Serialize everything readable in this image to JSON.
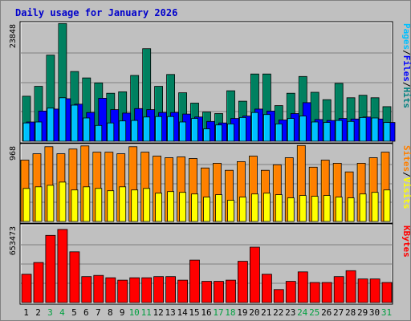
{
  "chart_data": {
    "type": "bar",
    "title": "Daily usage for January 2026",
    "x": [
      "1",
      "2",
      "3",
      "4",
      "5",
      "6",
      "7",
      "8",
      "9",
      "10",
      "11",
      "12",
      "13",
      "14",
      "15",
      "16",
      "17",
      "18",
      "19",
      "20",
      "21",
      "22",
      "23",
      "24",
      "25",
      "26",
      "27",
      "28",
      "29",
      "30",
      "31"
    ],
    "weekend_days": [
      "3",
      "4",
      "10",
      "11",
      "17",
      "18",
      "24",
      "25",
      "31"
    ],
    "panels": [
      {
        "name": "hits-files-pages",
        "ymax_label": "23848",
        "ylim": [
          0,
          23848
        ],
        "legend": [
          "Pages",
          "/",
          "Files",
          "/",
          "Hits"
        ],
        "legend_colors": [
          "#00c0ff",
          "#000000",
          "#0000ff",
          "#000000",
          "#008080"
        ],
        "series": [
          {
            "name": "Hits",
            "color": "#008060",
            "values": [
              9100,
              11100,
              17400,
              23800,
              14100,
              12800,
              11800,
              9700,
              10000,
              13300,
              18700,
              11100,
              13500,
              9800,
              7700,
              5900,
              5600,
              10200,
              8100,
              13600,
              13600,
              7200,
              9700,
              13100,
              9900,
              8400,
              11700,
              8800,
              9300,
              8800,
              7000
            ]
          },
          {
            "name": "Files",
            "color": "#0000ff",
            "values": [
              3900,
              6100,
              6500,
              8600,
              7500,
              5800,
              8700,
              6400,
              5700,
              6600,
              6400,
              5800,
              5800,
              5500,
              4900,
              4000,
              3700,
              4600,
              5100,
              6500,
              6100,
              4300,
              5600,
              7800,
              4400,
              4200,
              4600,
              4500,
              4900,
              4500,
              3800
            ]
          },
          {
            "name": "Pages",
            "color": "#00c0ff",
            "values": [
              3700,
              3900,
              6700,
              8800,
              7300,
              4700,
              3200,
              3700,
              4100,
              4200,
              4900,
              5000,
              5000,
              3900,
              4600,
              2500,
              3300,
              3500,
              4800,
              5800,
              5400,
              3500,
              4600,
              5100,
              3900,
              3800,
              4200,
              4000,
              4800,
              4700,
              3800
            ]
          }
        ]
      },
      {
        "name": "visits-sites",
        "ymax_label": "968",
        "ylim": [
          0,
          968
        ],
        "legend": [
          "Sites",
          "/",
          "Visits"
        ],
        "legend_colors": [
          "#ff8000",
          "#000000",
          "#ffff00"
        ],
        "series": [
          {
            "name": "Visits",
            "color": "#ff8000",
            "values": [
              780,
              860,
              950,
              860,
              920,
              960,
              880,
              880,
              860,
              950,
              880,
              830,
              810,
              820,
              800,
              680,
              740,
              650,
              760,
              830,
              650,
              720,
              810,
              965,
              690,
              780,
              740,
              630,
              740,
              810,
              880
            ]
          },
          {
            "name": "Sites",
            "color": "#ffff00",
            "values": [
              420,
              440,
              460,
              500,
              400,
              440,
              420,
              390,
              440,
              400,
              420,
              360,
              380,
              370,
              350,
              310,
              340,
              270,
              310,
              350,
              360,
              340,
              300,
              330,
              320,
              330,
              310,
              300,
              350,
              370,
              400
            ]
          }
        ]
      },
      {
        "name": "kbytes",
        "ymax_label": "653473",
        "ylim": [
          0,
          653473
        ],
        "legend": [
          "KBytes"
        ],
        "legend_colors": [
          "#ff0000"
        ],
        "series": [
          {
            "name": "KBytes",
            "color": "#ff0000",
            "values": [
              240000,
              340000,
              570000,
              620000,
              430000,
              220000,
              230000,
              210000,
              190000,
              210000,
              210000,
              220000,
              220000,
              190000,
              360000,
              180000,
              180000,
              190000,
              350000,
              470000,
              240000,
              110000,
              180000,
              260000,
              170000,
              170000,
              220000,
              270000,
              200000,
              200000,
              170000
            ]
          }
        ]
      }
    ]
  }
}
